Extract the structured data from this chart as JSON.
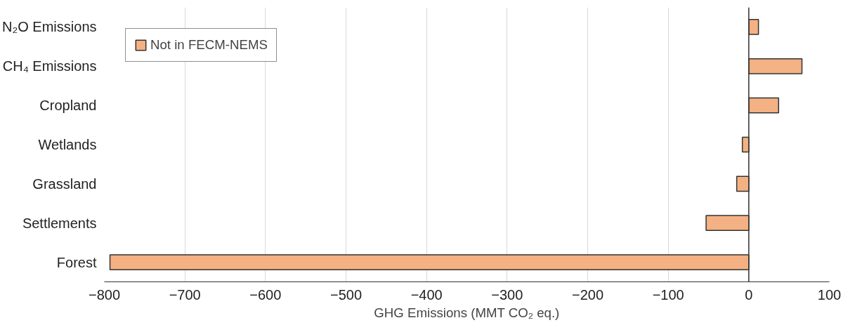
{
  "chart_data": {
    "type": "bar",
    "orientation": "horizontal",
    "xlabel": "GHG Emissions (MMT CO₂ eq.)",
    "categories": [
      "N₂O Emissions",
      "CH₄ Emissions",
      "Cropland",
      "Wetlands",
      "Grassland",
      "Settlements",
      "Forest"
    ],
    "series": [
      {
        "name": "Not in FECM-NEMS",
        "color": "#f4b183",
        "values": [
          12,
          66,
          37,
          -8,
          -15,
          -53,
          -793
        ]
      }
    ],
    "xlim": [
      -800,
      100
    ],
    "xticks": [
      -800,
      -700,
      -600,
      -500,
      -400,
      -300,
      -200,
      -100,
      0,
      100
    ],
    "grid": "x",
    "legend": "top left"
  }
}
